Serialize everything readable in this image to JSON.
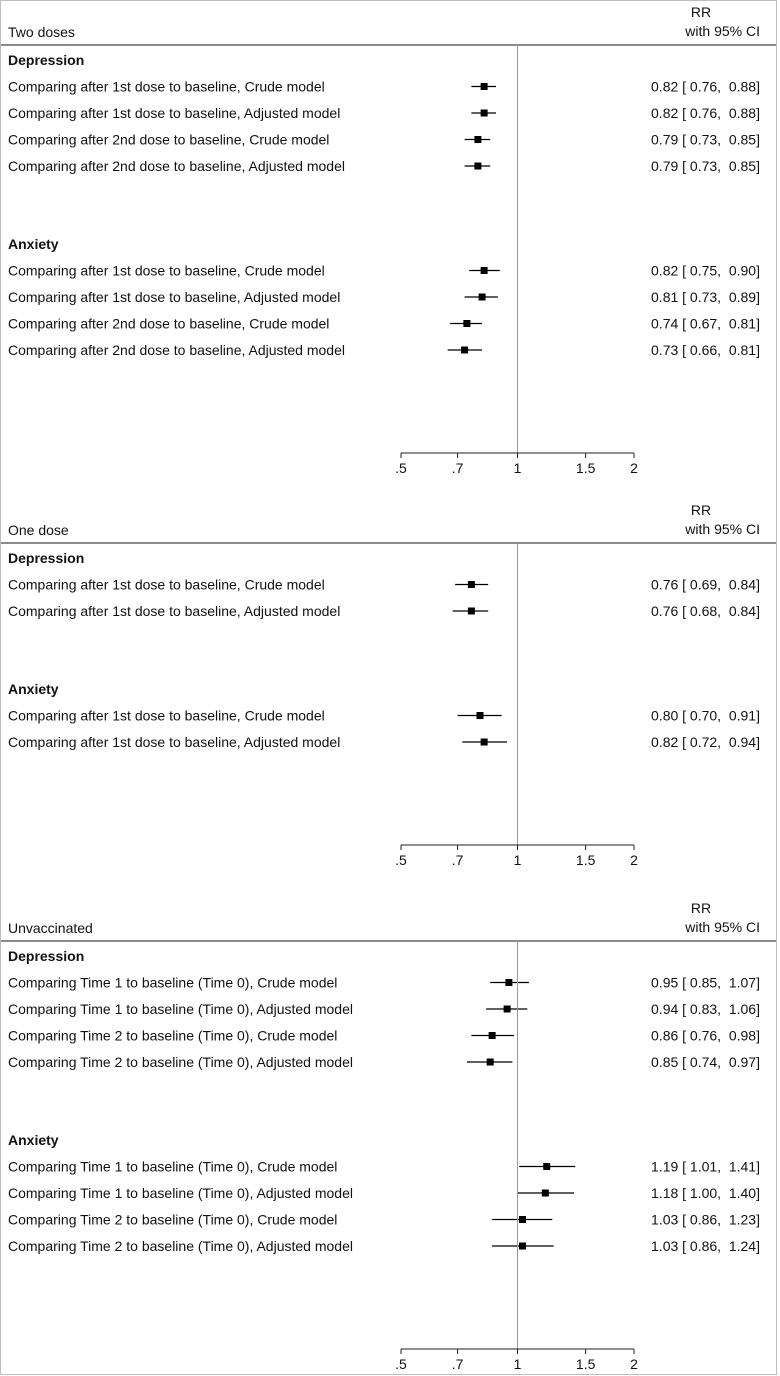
{
  "chart_data": [
    {
      "type": "forest",
      "title": "Two doses",
      "column_header": [
        "RR",
        "with 95% CI"
      ],
      "xscale": "log",
      "xlim": [
        0.5,
        2
      ],
      "xticks": [
        {
          "value": 0.5,
          "label": ".5"
        },
        {
          "value": 0.7,
          "label": ".7"
        },
        1,
        1.5,
        2
      ],
      "reference_line": 1,
      "color": "#000000",
      "sections": [
        {
          "name": "Depression",
          "categories": [
            "Comparing after 1st dose to baseline, Crude model",
            "Comparing after 1st dose to baseline, Adjusted model",
            "Comparing after 2nd dose to baseline, Crude model",
            "Comparing after 2nd dose to baseline, Adjusted model"
          ],
          "values": [
            0.82,
            0.82,
            0.79,
            0.79
          ],
          "lower": [
            0.76,
            0.76,
            0.73,
            0.73
          ],
          "upper": [
            0.88,
            0.88,
            0.85,
            0.85
          ],
          "value_labels": [
            "0.82 [ 0.76,  0.88]",
            "0.82 [ 0.76,  0.88]",
            "0.79 [ 0.73,  0.85]",
            "0.79 [ 0.73,  0.85]"
          ]
        },
        {
          "name": "Anxiety",
          "categories": [
            "Comparing after 1st dose to baseline, Crude model",
            "Comparing after 1st dose to baseline, Adjusted model",
            "Comparing after 2nd dose to baseline, Crude model",
            "Comparing after 2nd dose to baseline, Adjusted model"
          ],
          "values": [
            0.82,
            0.81,
            0.74,
            0.73
          ],
          "lower": [
            0.75,
            0.73,
            0.67,
            0.66
          ],
          "upper": [
            0.9,
            0.89,
            0.81,
            0.81
          ],
          "value_labels": [
            "0.82 [ 0.75,  0.90]",
            "0.81 [ 0.73,  0.89]",
            "0.74 [ 0.67,  0.81]",
            "0.73 [ 0.66,  0.81]"
          ]
        }
      ]
    },
    {
      "type": "forest",
      "title": "One dose",
      "column_header": [
        "RR",
        "with 95% CI"
      ],
      "xscale": "log",
      "xlim": [
        0.5,
        2
      ],
      "xticks": [
        {
          "value": 0.5,
          "label": ".5"
        },
        {
          "value": 0.7,
          "label": ".7"
        },
        1,
        1.5,
        2
      ],
      "reference_line": 1,
      "color": "#000000",
      "sections": [
        {
          "name": "Depression",
          "categories": [
            "Comparing after 1st dose to baseline, Crude model",
            "Comparing after 1st dose to baseline, Adjusted model"
          ],
          "values": [
            0.76,
            0.76
          ],
          "lower": [
            0.69,
            0.68
          ],
          "upper": [
            0.84,
            0.84
          ],
          "value_labels": [
            "0.76 [ 0.69,  0.84]",
            "0.76 [ 0.68,  0.84]"
          ]
        },
        {
          "name": "Anxiety",
          "categories": [
            "Comparing after 1st dose to baseline, Crude model",
            "Comparing after 1st dose to baseline, Adjusted model"
          ],
          "values": [
            0.8,
            0.82
          ],
          "lower": [
            0.7,
            0.72
          ],
          "upper": [
            0.91,
            0.94
          ],
          "value_labels": [
            "0.80 [ 0.70,  0.91]",
            "0.82 [ 0.72,  0.94]"
          ]
        }
      ]
    },
    {
      "type": "forest",
      "title": "Unvaccinated",
      "column_header": [
        "RR",
        "with 95% CI"
      ],
      "xscale": "log",
      "xlim": [
        0.5,
        2
      ],
      "xticks": [
        {
          "value": 0.5,
          "label": ".5"
        },
        {
          "value": 0.7,
          "label": ".7"
        },
        1,
        1.5,
        2
      ],
      "reference_line": 1,
      "color": "#000000",
      "sections": [
        {
          "name": "Depression",
          "categories": [
            "Comparing Time 1 to baseline (Time 0), Crude model",
            "Comparing Time 1 to baseline (Time 0), Adjusted model",
            "Comparing Time 2 to baseline (Time 0), Crude model",
            "Comparing Time 2 to baseline (Time 0), Adjusted model"
          ],
          "values": [
            0.95,
            0.94,
            0.86,
            0.85
          ],
          "lower": [
            0.85,
            0.83,
            0.76,
            0.74
          ],
          "upper": [
            1.07,
            1.06,
            0.98,
            0.97
          ],
          "value_labels": [
            "0.95 [ 0.85,  1.07]",
            "0.94 [ 0.83,  1.06]",
            "0.86 [ 0.76,  0.98]",
            "0.85 [ 0.74,  0.97]"
          ]
        },
        {
          "name": "Anxiety",
          "categories": [
            "Comparing Time 1 to baseline (Time 0), Crude model",
            "Comparing Time 1 to baseline (Time 0), Adjusted model",
            "Comparing Time 2 to baseline (Time 0), Crude model",
            "Comparing Time 2 to baseline (Time 0), Adjusted model"
          ],
          "values": [
            1.19,
            1.18,
            1.03,
            1.03
          ],
          "lower": [
            1.01,
            1.0,
            0.86,
            0.86
          ],
          "upper": [
            1.41,
            1.4,
            1.23,
            1.24
          ],
          "value_labels": [
            "1.19 [ 1.01,  1.41]",
            "1.18 [ 1.00,  1.40]",
            "1.03 [ 0.86,  1.23]",
            "1.03 [ 0.86,  1.24]"
          ]
        }
      ]
    }
  ]
}
